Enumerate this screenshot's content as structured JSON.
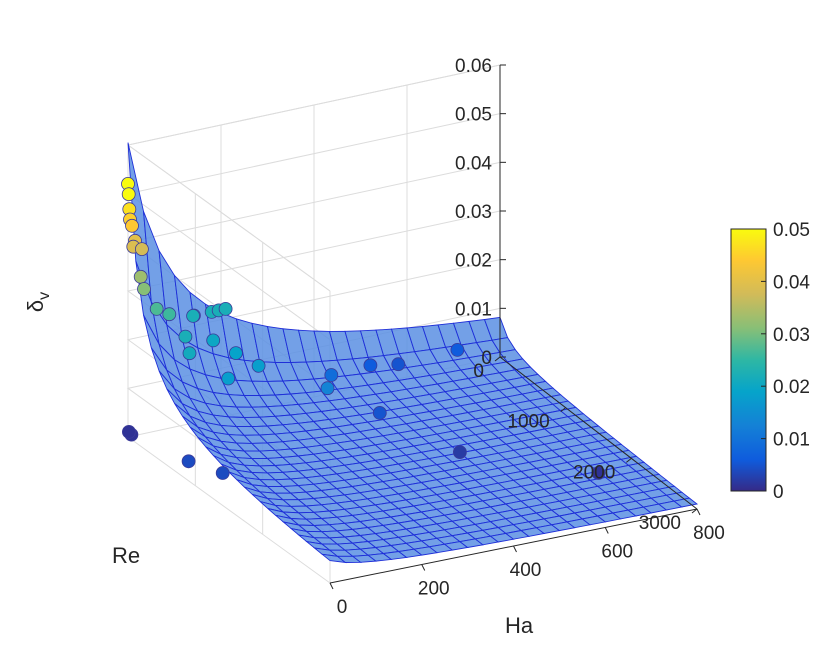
{
  "chart_data": {
    "type": "surface",
    "title": "",
    "zlabel": "δv",
    "zlabel_main": "δ",
    "zlabel_sub": "v",
    "xlabel": "Ha",
    "ylabel": "Re",
    "zlim": [
      0,
      0.06
    ],
    "z_ticks": [
      "0",
      "0.01",
      "0.02",
      "0.03",
      "0.04",
      "0.05",
      "0.06"
    ],
    "ha_ticks": [
      "0",
      "200",
      "400",
      "600",
      "800"
    ],
    "re_ticks": [
      "0",
      "1000",
      "2000",
      "3000"
    ],
    "colorbar": {
      "range": [
        0,
        0.05
      ],
      "ticks": [
        "0",
        "0.01",
        "0.02",
        "0.03",
        "0.04",
        "0.05"
      ],
      "colormap": "parula"
    },
    "surface_color": "#5b8fe3",
    "surface_edge_color": "#1f2fd8",
    "grid": true,
    "surface_model": "z(Re, Ha) peaks at Re≈0, Ha≈0 with value ≈0.06 and decays toward ≈0 at Re=3000, Ha=800",
    "points": [
      {
        "re": 0,
        "ha": 0,
        "dv": 0.052
      },
      {
        "re": 10,
        "ha": 0,
        "dv": 0.05
      },
      {
        "re": 20,
        "ha": 0,
        "dv": 0.047
      },
      {
        "re": 30,
        "ha": 0,
        "dv": 0.045
      },
      {
        "re": 60,
        "ha": 0,
        "dv": 0.044
      },
      {
        "re": 0,
        "ha": 15,
        "dv": 0.04
      },
      {
        "re": 10,
        "ha": 10,
        "dv": 0.039
      },
      {
        "re": 0,
        "ha": 30,
        "dv": 0.038
      },
      {
        "re": 50,
        "ha": 20,
        "dv": 0.033
      },
      {
        "re": 100,
        "ha": 20,
        "dv": 0.031
      },
      {
        "re": 150,
        "ha": 40,
        "dv": 0.027
      },
      {
        "re": 200,
        "ha": 60,
        "dv": 0.026
      },
      {
        "re": 150,
        "ha": 120,
        "dv": 0.024
      },
      {
        "re": 300,
        "ha": 80,
        "dv": 0.022
      },
      {
        "re": 300,
        "ha": 140,
        "dv": 0.02
      },
      {
        "re": 500,
        "ha": 160,
        "dv": 0.019
      },
      {
        "re": 500,
        "ha": 60,
        "dv": 0.021
      },
      {
        "re": 0,
        "ha": 140,
        "dv": 0.022
      },
      {
        "re": 0,
        "ha": 180,
        "dv": 0.022
      },
      {
        "re": 0,
        "ha": 195,
        "dv": 0.022
      },
      {
        "re": 0,
        "ha": 210,
        "dv": 0.022
      },
      {
        "re": 800,
        "ha": 100,
        "dv": 0.018
      },
      {
        "re": 700,
        "ha": 180,
        "dv": 0.018
      },
      {
        "re": 900,
        "ha": 300,
        "dv": 0.013
      },
      {
        "re": 400,
        "ha": 380,
        "dv": 0.009
      },
      {
        "re": 150,
        "ha": 560,
        "dv": 0.005
      },
      {
        "re": 150,
        "ha": 500,
        "dv": 0.006
      },
      {
        "re": 200,
        "ha": 680,
        "dv": 0.006
      },
      {
        "re": 850,
        "ha": 420,
        "dv": 0.005
      },
      {
        "re": 1200,
        "ha": 30,
        "dv": 0.004
      },
      {
        "re": 900,
        "ha": 0,
        "dv": 0.004
      },
      {
        "re": 50,
        "ha": 0,
        "dv": 0.001
      },
      {
        "re": 0,
        "ha": 2,
        "dv": 0.001
      },
      {
        "re": 1500,
        "ha": 500,
        "dv": 0.002
      },
      {
        "re": 2200,
        "ha": 700,
        "dv": 0.001
      }
    ]
  }
}
